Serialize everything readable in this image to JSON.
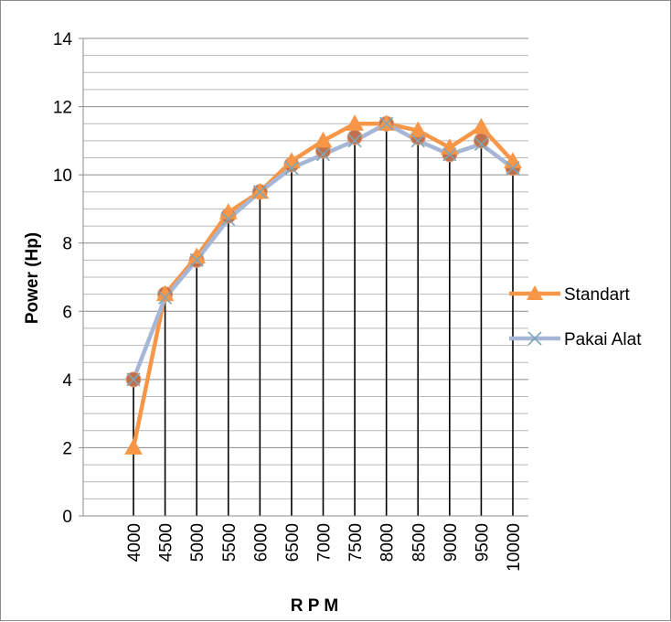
{
  "chart_data": {
    "type": "line",
    "title": "",
    "xlabel": "R P M",
    "ylabel": "Power (Hp)",
    "categories": [
      "4000",
      "4500",
      "5000",
      "5500",
      "6000",
      "6500",
      "7000",
      "7500",
      "8000",
      "8500",
      "9000",
      "9500",
      "10000"
    ],
    "ylim": [
      0,
      14
    ],
    "yticks": [
      0,
      2,
      4,
      6,
      8,
      10,
      12,
      14
    ],
    "grid": "horizontal minor every 0.5, vertical drop lines from line to axis",
    "legend_position": "right",
    "series": [
      {
        "name": "Standart",
        "color": "#f79646",
        "marker": "triangle",
        "values": [
          2.0,
          6.5,
          7.6,
          8.9,
          9.5,
          10.4,
          11.0,
          11.5,
          11.5,
          11.3,
          10.8,
          11.4,
          10.4
        ]
      },
      {
        "name": "Pakai Alat",
        "color": "#a5b6d6",
        "marker": "x",
        "values": [
          4.0,
          6.4,
          7.5,
          8.7,
          9.5,
          10.2,
          10.6,
          11.0,
          11.5,
          11.0,
          10.6,
          10.9,
          10.2
        ]
      }
    ],
    "extra_markers": {
      "color": "#c0704d",
      "marker": "circle",
      "values": [
        4.0,
        6.5,
        7.5,
        8.8,
        9.5,
        10.3,
        10.7,
        11.1,
        11.5,
        11.1,
        10.6,
        11.0,
        10.2
      ]
    }
  }
}
